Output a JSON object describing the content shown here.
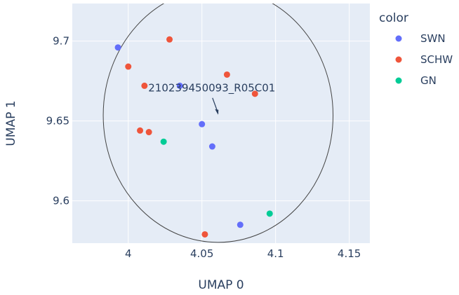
{
  "chart_data": {
    "type": "scatter",
    "xlabel": "UMAP 0",
    "ylabel": "UMAP 1",
    "xlim": [
      3.962,
      4.164
    ],
    "ylim": [
      3.5735,
      9.7235
    ],
    "ylim_actual": [
      9.5735,
      9.7235
    ],
    "x_ticks": [
      {
        "value": 4,
        "label": "4"
      },
      {
        "value": 4.05,
        "label": "4.05"
      },
      {
        "value": 4.1,
        "label": "4.1"
      },
      {
        "value": 4.15,
        "label": "4.15"
      }
    ],
    "y_ticks": [
      {
        "value": 9.6,
        "label": "9.6"
      },
      {
        "value": 9.65,
        "label": "9.65"
      },
      {
        "value": 9.7,
        "label": "9.7"
      }
    ],
    "grid": true,
    "legend": {
      "title": "color",
      "placement": "right",
      "entries": [
        {
          "name": "SWN",
          "color": "#636efa"
        },
        {
          "name": "SCHW",
          "color": "#ef553b"
        },
        {
          "name": "GN",
          "color": "#00cc96"
        }
      ]
    },
    "series": [
      {
        "name": "SWN",
        "color": "#636efa",
        "points": [
          [
            3.993,
            9.696
          ],
          [
            4.035,
            9.672
          ],
          [
            4.05,
            9.648
          ],
          [
            4.057,
            9.634
          ],
          [
            4.076,
            9.585
          ]
        ]
      },
      {
        "name": "SCHW",
        "color": "#ef553b",
        "points": [
          [
            4.028,
            9.701
          ],
          [
            4.0,
            9.684
          ],
          [
            4.011,
            9.672
          ],
          [
            4.067,
            9.679
          ],
          [
            4.086,
            9.667
          ],
          [
            4.008,
            9.644
          ],
          [
            4.014,
            9.643
          ],
          [
            4.052,
            9.579
          ]
        ]
      },
      {
        "name": "GN",
        "color": "#00cc96",
        "points": [
          [
            4.024,
            9.637
          ],
          [
            4.096,
            9.592
          ]
        ]
      }
    ],
    "annotations": [
      {
        "text": "210239450093_R05C01",
        "x": 4.061,
        "y": 9.653,
        "arrow": true
      }
    ],
    "shapes": [
      {
        "type": "circle",
        "x0": 3.983,
        "x1": 4.139,
        "y0": 9.574,
        "y1": 9.733,
        "stroke": "#444444"
      }
    ]
  },
  "colors": {
    "plot_bg": "#e5ecf6",
    "grid": "#ffffff",
    "text": "#2a3f5f"
  }
}
